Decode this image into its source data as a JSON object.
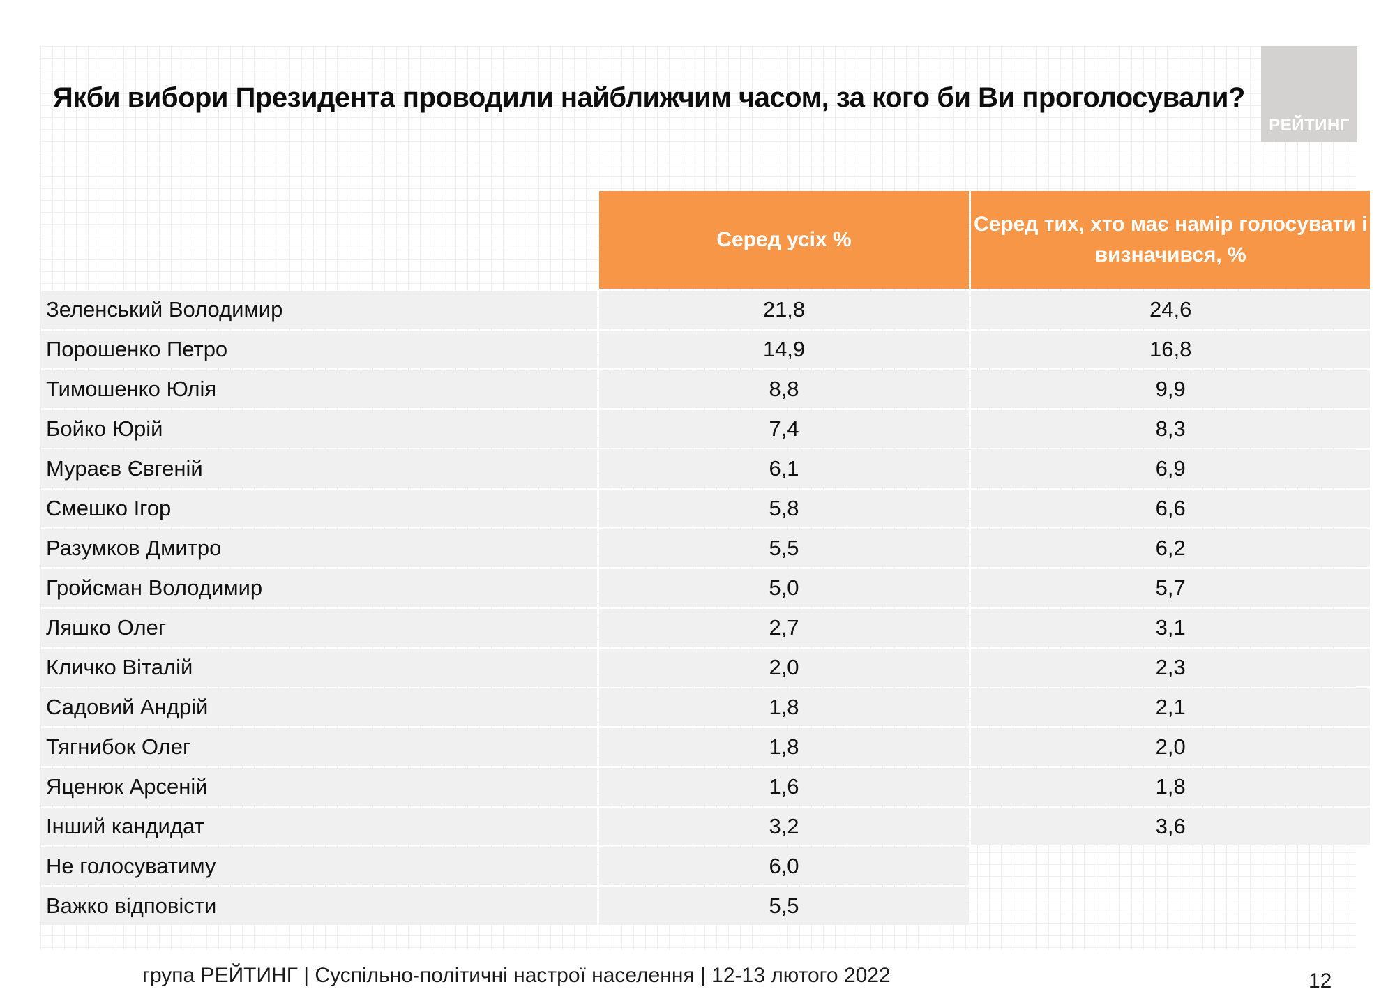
{
  "title": "Якби вибори Президента проводили найближчим часом, за кого би Ви проголосували?",
  "logo": "РЕЙТИНГ",
  "table": {
    "headers": [
      "Серед усіх %",
      "Серед тих, хто має намір голосувати і",
      "визначився, %"
    ],
    "rows": [
      [
        "Зеленський Володимир",
        "21,8",
        "24,6"
      ],
      [
        "Порошенко Петро",
        "14,9",
        "16,8"
      ],
      [
        "Тимошенко Юлія",
        "8,8",
        "9,9"
      ],
      [
        "Бойко Юрій",
        "7,4",
        "8,3"
      ],
      [
        "Мураєв Євгеній",
        "6,1",
        "6,9"
      ],
      [
        "Смешко Ігор",
        "5,8",
        "6,6"
      ],
      [
        "Разумков Дмитро",
        "5,5",
        "6,2"
      ],
      [
        "Гройсман Володимир",
        "5,0",
        "5,7"
      ],
      [
        "Ляшко Олег",
        "2,7",
        "3,1"
      ],
      [
        "Кличко Віталій",
        "2,0",
        "2,3"
      ],
      [
        "Садовий Андрій",
        "1,8",
        "2,1"
      ],
      [
        "Тягнибок Олег",
        "1,8",
        "2,0"
      ],
      [
        "Яценюк Арсеній",
        "1,6",
        "1,8"
      ],
      [
        "Інший кандидат",
        "3,2",
        "3,6"
      ],
      [
        "Не голосуватиму",
        "6,0",
        ""
      ],
      [
        "Важко відповісти",
        "5,5",
        ""
      ]
    ]
  },
  "footer": "група РЕЙТИНГ | Суспільно-політичні настрої населення | 12-13 лютого 2022",
  "page_number": "12",
  "colors": {
    "header_bg": "#f79646",
    "row_bg": "#f0f0f0",
    "logo_bg": "#d4d2d1"
  }
}
